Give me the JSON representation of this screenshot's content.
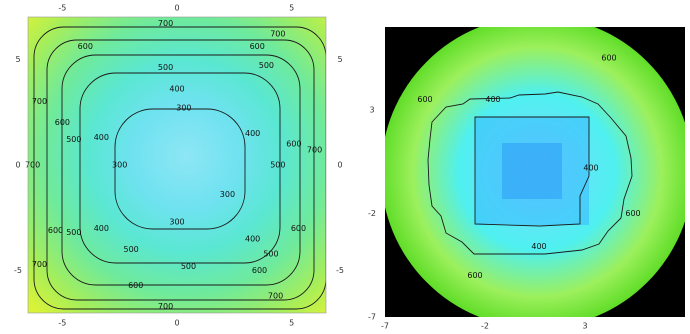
{
  "chart_data": [
    {
      "type": "heatmap",
      "subtype": "contour",
      "colormap": [
        "#3ac8f0",
        "#3ff0e0",
        "#58f0a8",
        "#88f05c",
        "#c8f23a"
      ],
      "xlim": [
        -6.5,
        6.5
      ],
      "ylim": [
        -7,
        7
      ],
      "x_ticks_top": [
        "-5",
        "0",
        "5"
      ],
      "x_ticks_bottom": [
        "-5",
        "0",
        "5"
      ],
      "y_ticks_left": [
        "5",
        "0",
        "-5"
      ],
      "y_ticks_right": [
        "5",
        "0",
        "-5"
      ],
      "contour_levels": [
        300,
        400,
        500,
        600,
        700
      ],
      "contour_labels": [
        {
          "text": "700",
          "x": -0.5,
          "y": 6.7
        },
        {
          "text": "700",
          "x": 4.4,
          "y": 6.2
        },
        {
          "text": "600",
          "x": -4.0,
          "y": 5.6
        },
        {
          "text": "600",
          "x": 3.5,
          "y": 5.6
        },
        {
          "text": "500",
          "x": 3.9,
          "y": 4.7
        },
        {
          "text": "500",
          "x": -0.5,
          "y": 4.6
        },
        {
          "text": "400",
          "x": 0.0,
          "y": 3.6
        },
        {
          "text": "300",
          "x": 0.3,
          "y": 2.7
        },
        {
          "text": "700",
          "x": -6.0,
          "y": 3.0
        },
        {
          "text": "600",
          "x": -5.0,
          "y": 2.0
        },
        {
          "text": "500",
          "x": -4.5,
          "y": 1.2
        },
        {
          "text": "400",
          "x": -3.3,
          "y": 1.3
        },
        {
          "text": "300",
          "x": -2.5,
          "y": 0.0
        },
        {
          "text": "400",
          "x": 3.3,
          "y": 1.5
        },
        {
          "text": "500",
          "x": 4.4,
          "y": 0.0
        },
        {
          "text": "600",
          "x": 5.1,
          "y": 1.0
        },
        {
          "text": "700",
          "x": 6.0,
          "y": 0.7
        },
        {
          "text": "700",
          "x": -6.3,
          "y": 0.0
        },
        {
          "text": "300",
          "x": 2.2,
          "y": -1.4
        },
        {
          "text": "300",
          "x": 0.0,
          "y": -2.7
        },
        {
          "text": "400",
          "x": 3.3,
          "y": -3.5
        },
        {
          "text": "400",
          "x": -3.3,
          "y": -3.0
        },
        {
          "text": "500",
          "x": -4.5,
          "y": -3.2
        },
        {
          "text": "500",
          "x": -2.0,
          "y": -4.0
        },
        {
          "text": "600",
          "x": -5.3,
          "y": -3.1
        },
        {
          "text": "600",
          "x": 5.3,
          "y": -3.0
        },
        {
          "text": "500",
          "x": 0.5,
          "y": -4.8
        },
        {
          "text": "500",
          "x": 4.1,
          "y": -4.2
        },
        {
          "text": "700",
          "x": -6.0,
          "y": -4.7
        },
        {
          "text": "600",
          "x": -1.8,
          "y": -5.7
        },
        {
          "text": "600",
          "x": 3.6,
          "y": -5.0
        },
        {
          "text": "700",
          "x": 4.3,
          "y": -6.2
        },
        {
          "text": "700",
          "x": -0.5,
          "y": -6.7
        }
      ],
      "grid": false
    },
    {
      "type": "heatmap",
      "subtype": "contour",
      "colormap": [
        "#2aa8f0",
        "#3ff0f0",
        "#88f03a",
        "#5cdc20"
      ],
      "background": "#000000",
      "xlim": [
        -7,
        8
      ],
      "ylim": [
        -7,
        7
      ],
      "x_ticks": [
        "-7",
        "-2",
        "3"
      ],
      "y_ticks": [
        "3",
        "-2",
        "-7"
      ],
      "contour_levels": [
        400,
        600
      ],
      "contour_labels": [
        {
          "text": "600",
          "x": -5.0,
          "y": 3.5
        },
        {
          "text": "400",
          "x": -1.6,
          "y": 3.5
        },
        {
          "text": "600",
          "x": 4.2,
          "y": 5.5
        },
        {
          "text": "400",
          "x": 3.3,
          "y": 0.2
        },
        {
          "text": "600",
          "x": 5.4,
          "y": -2.0
        },
        {
          "text": "400",
          "x": 0.7,
          "y": -3.6
        },
        {
          "text": "600",
          "x": -2.5,
          "y": -5.0
        }
      ],
      "grid": false
    }
  ]
}
